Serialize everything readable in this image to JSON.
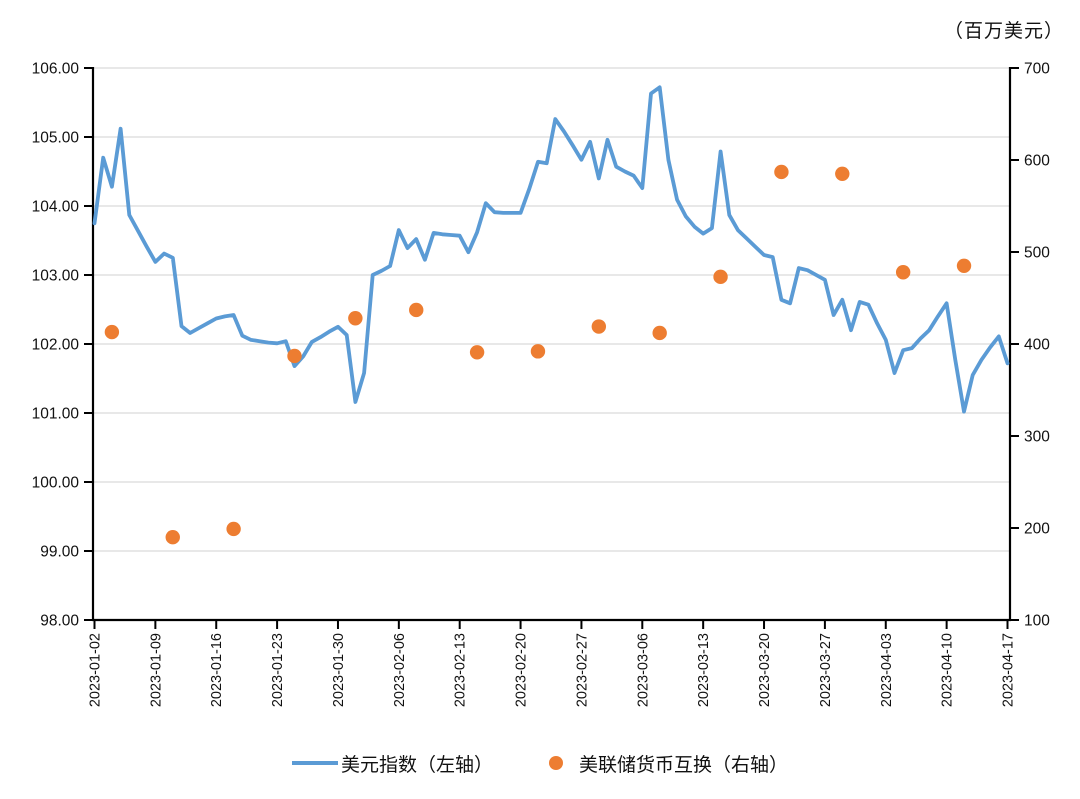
{
  "page": {
    "background": "#FFFFFF"
  },
  "chart_data": {
    "type": [
      "line",
      "scatter"
    ],
    "unit_label": "（百万美元）",
    "legend_position": "bottom-center",
    "grid": "horizontal-on",
    "colors": {
      "line": "#5B9BD5",
      "dots": "#ED7D31",
      "gridline": "#D9D9D9",
      "axis": "#000000",
      "text": "#111111"
    },
    "left_axis": {
      "min": 98,
      "max": 106,
      "step": 1,
      "tick_labels": [
        "98.00",
        "99.00",
        "100.00",
        "101.00",
        "102.00",
        "103.00",
        "104.00",
        "105.00",
        "106.00"
      ]
    },
    "right_axis": {
      "min": 100,
      "max": 700,
      "step": 100,
      "tick_labels": [
        "100",
        "200",
        "300",
        "400",
        "500",
        "600",
        "700"
      ]
    },
    "x_axis": {
      "tick_labels": [
        "2023-01-02",
        "2023-01-09",
        "2023-01-16",
        "2023-01-23",
        "2023-01-30",
        "2023-02-06",
        "2023-02-13",
        "2023-02-20",
        "2023-02-27",
        "2023-03-06",
        "2023-03-13",
        "2023-03-20",
        "2023-03-27",
        "2023-04-03",
        "2023-04-10",
        "2023-04-17"
      ],
      "ticks_every_n_points": 7
    },
    "series": [
      {
        "name": "美元指数（左轴）",
        "type": "line",
        "axis": "left",
        "color": "#5B9BD5",
        "start_date": "2023-01-02",
        "end_date": "2023-04-17",
        "frequency": "daily",
        "values": [
          103.75,
          104.7,
          104.28,
          105.12,
          103.87,
          103.64,
          103.41,
          103.19,
          103.31,
          103.25,
          102.26,
          102.16,
          102.23,
          102.3,
          102.37,
          102.4,
          102.42,
          102.12,
          102.06,
          102.04,
          102.02,
          102.01,
          102.04,
          101.68,
          101.82,
          102.03,
          102.1,
          102.18,
          102.25,
          102.13,
          101.16,
          101.58,
          103.0,
          103.06,
          103.13,
          103.65,
          103.39,
          103.52,
          103.22,
          103.61,
          103.59,
          103.58,
          103.57,
          103.33,
          103.62,
          104.04,
          103.91,
          103.9,
          103.9,
          103.9,
          104.25,
          104.64,
          104.62,
          105.26,
          105.08,
          104.88,
          104.67,
          104.93,
          104.4,
          104.96,
          104.57,
          104.5,
          104.44,
          104.26,
          105.63,
          105.72,
          104.67,
          104.09,
          103.85,
          103.7,
          103.6,
          103.68,
          104.79,
          103.87,
          103.65,
          103.53,
          103.41,
          103.29,
          103.26,
          102.64,
          102.59,
          103.1,
          103.07,
          103.0,
          102.93,
          102.42,
          102.64,
          102.2,
          102.61,
          102.57,
          102.3,
          102.06,
          101.58,
          101.91,
          101.94,
          102.08,
          102.2,
          102.4,
          102.59,
          101.77,
          101.02,
          101.55,
          101.77,
          101.95,
          102.11,
          101.72
        ]
      },
      {
        "name": "美联储货币互换（右轴）",
        "type": "scatter",
        "axis": "right",
        "color": "#ED7D31",
        "points": [
          {
            "date": "2023-01-04",
            "index": 2,
            "value": 413
          },
          {
            "date": "2023-01-11",
            "index": 9,
            "value": 190
          },
          {
            "date": "2023-01-18",
            "index": 16,
            "value": 199
          },
          {
            "date": "2023-01-25",
            "index": 23,
            "value": 387
          },
          {
            "date": "2023-02-01",
            "index": 30,
            "value": 428
          },
          {
            "date": "2023-02-08",
            "index": 37,
            "value": 437
          },
          {
            "date": "2023-02-15",
            "index": 44,
            "value": 391
          },
          {
            "date": "2023-02-22",
            "index": 51,
            "value": 392
          },
          {
            "date": "2023-03-01",
            "index": 58,
            "value": 419
          },
          {
            "date": "2023-03-08",
            "index": 65,
            "value": 412
          },
          {
            "date": "2023-03-15",
            "index": 72,
            "value": 473
          },
          {
            "date": "2023-03-22",
            "index": 79,
            "value": 587
          },
          {
            "date": "2023-03-29",
            "index": 86,
            "value": 585
          },
          {
            "date": "2023-04-05",
            "index": 93,
            "value": 478
          },
          {
            "date": "2023-04-12",
            "index": 100,
            "value": 485
          }
        ]
      }
    ]
  }
}
